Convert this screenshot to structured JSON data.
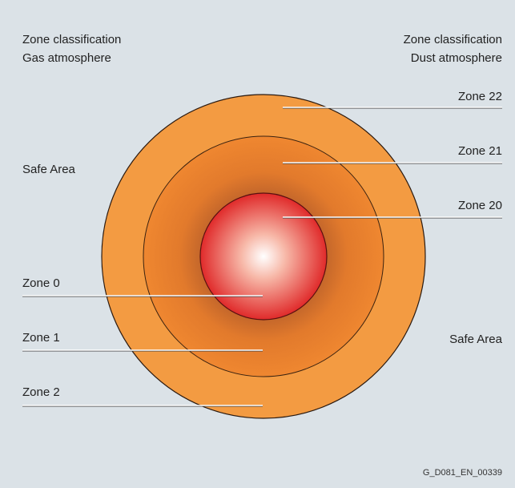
{
  "header": {
    "left": [
      "Zone classification",
      "Gas atmosphere"
    ],
    "right": [
      "Zone classification",
      "Dust atmosphere"
    ]
  },
  "safe_areas": [
    "Safe Area",
    "Safe Area"
  ],
  "dust_zones": [
    "Zone 22",
    "Zone 21",
    "Zone 20"
  ],
  "gas_zones": [
    "Zone 0",
    "Zone 1",
    "Zone 2"
  ],
  "footer": "G_D081_EN_00339"
}
